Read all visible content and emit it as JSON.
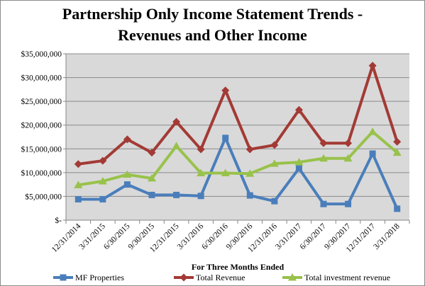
{
  "chart_data": {
    "type": "line",
    "title_line1": "Partnership Only Income Statement Trends -",
    "title_line2": "Revenues and Other Income",
    "xlabel": "For Three Months  Ended",
    "ylabel": "",
    "ylim": [
      0,
      35000000
    ],
    "yticks": [
      0,
      5000000,
      10000000,
      15000000,
      20000000,
      25000000,
      30000000,
      35000000
    ],
    "ytick_labels": [
      "$-",
      "$5,000,000",
      "$10,000,000",
      "$15,000,000",
      "$20,000,000",
      "$25,000,000",
      "$30,000,000",
      "$35,000,000"
    ],
    "categories": [
      "12/31/2014",
      "3/31/2015",
      "6/30/2015",
      "9/30/2015",
      "12/31/2015",
      "3/31/2016",
      "6/30/2016",
      "9/30/2016",
      "12/31/2016",
      "3/31/2017",
      "6/30/2017",
      "9/30/2017",
      "12/31/2017",
      "3/31/2018"
    ],
    "grid": true,
    "legend_position": "bottom",
    "series": [
      {
        "name": "MF Properties",
        "color": "#4a7ebb",
        "marker": "square",
        "values": [
          4400000,
          4400000,
          7500000,
          5300000,
          5300000,
          5100000,
          17300000,
          5200000,
          4000000,
          10900000,
          3400000,
          3400000,
          14000000,
          2400000
        ]
      },
      {
        "name": "Total Revenue",
        "color": "#a33a35",
        "marker": "diamond",
        "values": [
          11800000,
          12500000,
          17000000,
          14200000,
          20700000,
          14900000,
          27300000,
          14900000,
          15800000,
          23200000,
          16200000,
          16200000,
          32500000,
          16500000
        ]
      },
      {
        "name": "Total investment revenue",
        "color": "#98c24a",
        "marker": "triangle",
        "values": [
          7400000,
          8200000,
          9600000,
          8800000,
          15600000,
          9900000,
          9900000,
          9800000,
          11900000,
          12200000,
          13000000,
          13000000,
          18600000,
          14200000
        ]
      }
    ]
  }
}
